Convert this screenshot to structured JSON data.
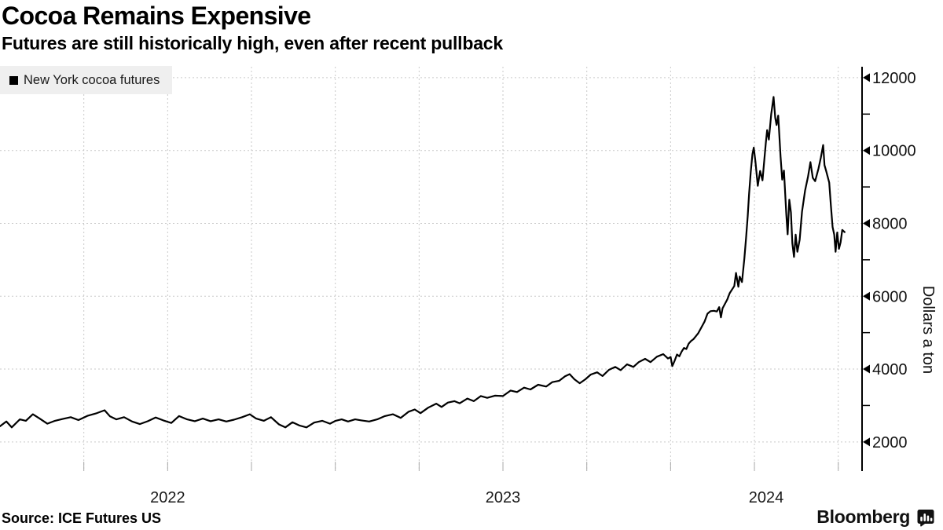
{
  "header": {
    "title": "Cocoa Remains Expensive",
    "subtitle": "Futures are still historically high, even after recent pullback"
  },
  "legend": {
    "items": [
      {
        "label": "New York cocoa futures",
        "color": "#000000"
      }
    ]
  },
  "footer": {
    "source": "Source: ICE Futures US",
    "brand": "Bloomberg"
  },
  "colors": {
    "line": "#000000",
    "grid": "#c9c9c9",
    "axis": "#000000",
    "tick_label": "#111111",
    "legend_bg": "#efefef"
  },
  "chart_data": {
    "type": "line",
    "title": "Cocoa Remains Expensive",
    "xlabel": "",
    "ylabel": "Dollars a ton",
    "x_axis": {
      "unit": "decimal_year",
      "domain": [
        2022.0,
        2024.571
      ],
      "grid_ticks": [
        2022.25,
        2022.5,
        2022.75,
        2023.0,
        2023.25,
        2023.5,
        2023.75,
        2024.0,
        2024.25,
        2024.5
      ],
      "year_labels": [
        {
          "label": "2022",
          "t": 2022.5
        },
        {
          "label": "2023",
          "t": 2023.5
        },
        {
          "label": "2024",
          "t": 2024.285
        }
      ],
      "grid": true
    },
    "y_axis": {
      "label": "Dollars a ton",
      "side": "right",
      "domain": [
        1220,
        12300
      ],
      "major_ticks": [
        2000,
        4000,
        6000,
        8000,
        10000,
        12000
      ],
      "minor_ticks": [
        3000,
        5000,
        7000,
        9000,
        11000
      ],
      "grid": true
    },
    "series": [
      {
        "name": "New York cocoa futures",
        "color": "#000000",
        "points": [
          [
            2022.0,
            2430
          ],
          [
            2022.019,
            2560
          ],
          [
            2022.035,
            2400
          ],
          [
            2022.059,
            2620
          ],
          [
            2022.077,
            2580
          ],
          [
            2022.098,
            2760
          ],
          [
            2022.117,
            2650
          ],
          [
            2022.141,
            2500
          ],
          [
            2022.164,
            2580
          ],
          [
            2022.187,
            2630
          ],
          [
            2022.211,
            2680
          ],
          [
            2022.234,
            2600
          ],
          [
            2022.262,
            2720
          ],
          [
            2022.286,
            2780
          ],
          [
            2022.312,
            2870
          ],
          [
            2022.328,
            2700
          ],
          [
            2022.347,
            2620
          ],
          [
            2022.37,
            2680
          ],
          [
            2022.394,
            2560
          ],
          [
            2022.417,
            2490
          ],
          [
            2022.441,
            2570
          ],
          [
            2022.464,
            2670
          ],
          [
            2022.487,
            2590
          ],
          [
            2022.511,
            2520
          ],
          [
            2022.534,
            2710
          ],
          [
            2022.558,
            2620
          ],
          [
            2022.581,
            2570
          ],
          [
            2022.605,
            2640
          ],
          [
            2022.628,
            2570
          ],
          [
            2022.652,
            2620
          ],
          [
            2022.675,
            2560
          ],
          [
            2022.698,
            2610
          ],
          [
            2022.722,
            2680
          ],
          [
            2022.745,
            2760
          ],
          [
            2022.764,
            2640
          ],
          [
            2022.787,
            2580
          ],
          [
            2022.808,
            2680
          ],
          [
            2022.832,
            2480
          ],
          [
            2022.851,
            2400
          ],
          [
            2022.872,
            2540
          ],
          [
            2022.893,
            2450
          ],
          [
            2022.914,
            2400
          ],
          [
            2022.937,
            2530
          ],
          [
            2022.961,
            2580
          ],
          [
            2022.984,
            2500
          ],
          [
            2023.001,
            2580
          ],
          [
            2023.019,
            2620
          ],
          [
            2023.038,
            2560
          ],
          [
            2023.059,
            2620
          ],
          [
            2023.078,
            2590
          ],
          [
            2023.101,
            2560
          ],
          [
            2023.125,
            2620
          ],
          [
            2023.148,
            2710
          ],
          [
            2023.172,
            2760
          ],
          [
            2023.195,
            2660
          ],
          [
            2023.219,
            2830
          ],
          [
            2023.237,
            2890
          ],
          [
            2023.254,
            2790
          ],
          [
            2023.277,
            2940
          ],
          [
            2023.301,
            3050
          ],
          [
            2023.317,
            2960
          ],
          [
            2023.336,
            3080
          ],
          [
            2023.355,
            3120
          ],
          [
            2023.371,
            3060
          ],
          [
            2023.394,
            3190
          ],
          [
            2023.413,
            3120
          ],
          [
            2023.434,
            3260
          ],
          [
            2023.453,
            3210
          ],
          [
            2023.476,
            3270
          ],
          [
            2023.5,
            3260
          ],
          [
            2023.523,
            3410
          ],
          [
            2023.542,
            3370
          ],
          [
            2023.563,
            3490
          ],
          [
            2023.582,
            3440
          ],
          [
            2023.605,
            3570
          ],
          [
            2023.629,
            3520
          ],
          [
            2023.647,
            3640
          ],
          [
            2023.668,
            3680
          ],
          [
            2023.685,
            3800
          ],
          [
            2023.699,
            3860
          ],
          [
            2023.713,
            3720
          ],
          [
            2023.729,
            3610
          ],
          [
            2023.746,
            3720
          ],
          [
            2023.762,
            3850
          ],
          [
            2023.781,
            3910
          ],
          [
            2023.797,
            3810
          ],
          [
            2023.816,
            3980
          ],
          [
            2023.835,
            4060
          ],
          [
            2023.851,
            3970
          ],
          [
            2023.87,
            4130
          ],
          [
            2023.889,
            4060
          ],
          [
            2023.905,
            4190
          ],
          [
            2023.924,
            4280
          ],
          [
            2023.94,
            4190
          ],
          [
            2023.959,
            4340
          ],
          [
            2023.978,
            4410
          ],
          [
            2023.992,
            4290
          ],
          [
            2024.0,
            4330
          ],
          [
            2024.005,
            4080
          ],
          [
            2024.012,
            4230
          ],
          [
            2024.019,
            4400
          ],
          [
            2024.026,
            4350
          ],
          [
            2024.033,
            4480
          ],
          [
            2024.04,
            4580
          ],
          [
            2024.047,
            4550
          ],
          [
            2024.054,
            4700
          ],
          [
            2024.061,
            4770
          ],
          [
            2024.068,
            4820
          ],
          [
            2024.075,
            4900
          ],
          [
            2024.082,
            4980
          ],
          [
            2024.091,
            5130
          ],
          [
            2024.101,
            5300
          ],
          [
            2024.11,
            5520
          ],
          [
            2024.119,
            5590
          ],
          [
            2024.129,
            5600
          ],
          [
            2024.138,
            5580
          ],
          [
            2024.145,
            5700
          ],
          [
            2024.15,
            5420
          ],
          [
            2024.155,
            5670
          ],
          [
            2024.162,
            5790
          ],
          [
            2024.169,
            5910
          ],
          [
            2024.176,
            6080
          ],
          [
            2024.183,
            6180
          ],
          [
            2024.19,
            6280
          ],
          [
            2024.195,
            6640
          ],
          [
            2024.202,
            6260
          ],
          [
            2024.206,
            6540
          ],
          [
            2024.213,
            6390
          ],
          [
            2024.22,
            7030
          ],
          [
            2024.225,
            7600
          ],
          [
            2024.23,
            8200
          ],
          [
            2024.234,
            8800
          ],
          [
            2024.239,
            9400
          ],
          [
            2024.244,
            9900
          ],
          [
            2024.248,
            10080
          ],
          [
            2024.253,
            9700
          ],
          [
            2024.26,
            9030
          ],
          [
            2024.267,
            9440
          ],
          [
            2024.274,
            9180
          ],
          [
            2024.284,
            10200
          ],
          [
            2024.288,
            10560
          ],
          [
            2024.293,
            10300
          ],
          [
            2024.3,
            11000
          ],
          [
            2024.307,
            11470
          ],
          [
            2024.312,
            10900
          ],
          [
            2024.316,
            10700
          ],
          [
            2024.321,
            10960
          ],
          [
            2024.328,
            9830
          ],
          [
            2024.333,
            9200
          ],
          [
            2024.338,
            9450
          ],
          [
            2024.345,
            8250
          ],
          [
            2024.349,
            7700
          ],
          [
            2024.354,
            8650
          ],
          [
            2024.359,
            8300
          ],
          [
            2024.363,
            7450
          ],
          [
            2024.368,
            7080
          ],
          [
            2024.373,
            7690
          ],
          [
            2024.378,
            7220
          ],
          [
            2024.385,
            7550
          ],
          [
            2024.392,
            8320
          ],
          [
            2024.401,
            8900
          ],
          [
            2024.41,
            9290
          ],
          [
            2024.417,
            9680
          ],
          [
            2024.424,
            9250
          ],
          [
            2024.431,
            9160
          ],
          [
            2024.441,
            9500
          ],
          [
            2024.448,
            9800
          ],
          [
            2024.455,
            10150
          ],
          [
            2024.459,
            9600
          ],
          [
            2024.464,
            9440
          ],
          [
            2024.473,
            9120
          ],
          [
            2024.478,
            8500
          ],
          [
            2024.483,
            7900
          ],
          [
            2024.488,
            7690
          ],
          [
            2024.492,
            7220
          ],
          [
            2024.497,
            7750
          ],
          [
            2024.502,
            7300
          ],
          [
            2024.507,
            7480
          ],
          [
            2024.512,
            7820
          ],
          [
            2024.519,
            7760
          ]
        ]
      }
    ]
  }
}
